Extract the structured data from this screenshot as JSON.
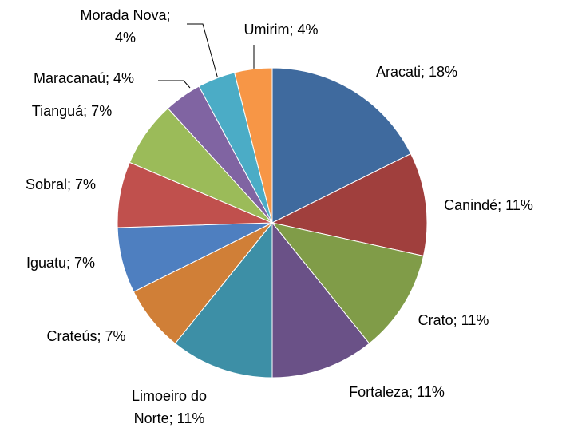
{
  "chart_data": {
    "type": "pie",
    "values": [
      18,
      11,
      11,
      11,
      11,
      7,
      7,
      7,
      7,
      4,
      4,
      4
    ],
    "value_labels": [
      "Aracati; 18%",
      "Canindé; 11%",
      "Crato; 11%",
      "Fortaleza; 11%",
      "Limoeiro do Norte; 11%",
      "Crateús; 7%",
      "Iguatu; 7%",
      "Sobral; 7%",
      "Tianguá; 7%",
      "Maracanaú; 4%",
      "Morada Nova; 4%",
      "Umirim; 4%"
    ],
    "colors": [
      "#3f6a9e",
      "#a03f3d",
      "#809c48",
      "#6a5187",
      "#3d8fa6",
      "#d07f37",
      "#4e7fc0",
      "#c0504d",
      "#9bbb59",
      "#8064a2",
      "#4bacc6",
      "#f79646"
    ]
  }
}
